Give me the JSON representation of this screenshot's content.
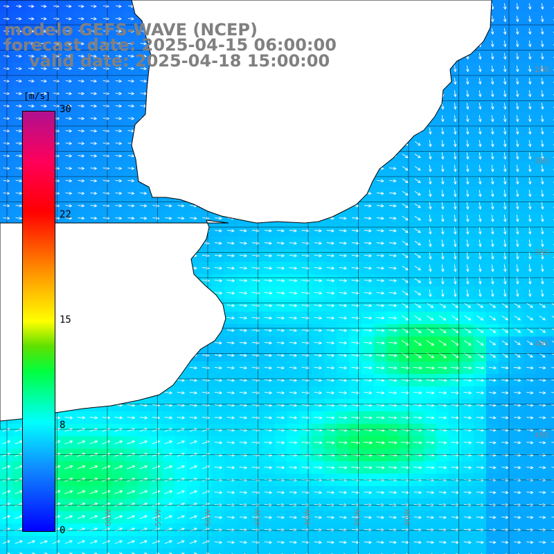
{
  "header": {
    "model": "modelo GEFS-WAVE (NCEP)",
    "forecast": "forecast date: 2025-04-15 06:00:00",
    "valid": "valid date: 2025-04-18 15:00:00"
  },
  "colorbar": {
    "unit": "[m/s]",
    "ticks": [
      "30",
      "22",
      "15",
      "8",
      "0"
    ],
    "tick_values": [
      30,
      22,
      15,
      8,
      0
    ],
    "colors": [
      "#0000ff",
      "#1e90ff",
      "#00ffff",
      "#00ff00",
      "#ffff00",
      "#ff0000",
      "#b01090"
    ]
  },
  "map": {
    "field": "wind speed",
    "grid_lines": true,
    "land_color": "#ffffff",
    "coastline_color": "#000000",
    "arrow_color": "#ffffff",
    "lon_labels": [
      "60W",
      "55W",
      "50W",
      "45W",
      "40W",
      "35W",
      "30W"
    ],
    "lat_labels": [
      "25S",
      "30S",
      "35S",
      "40S",
      "45S"
    ]
  }
}
